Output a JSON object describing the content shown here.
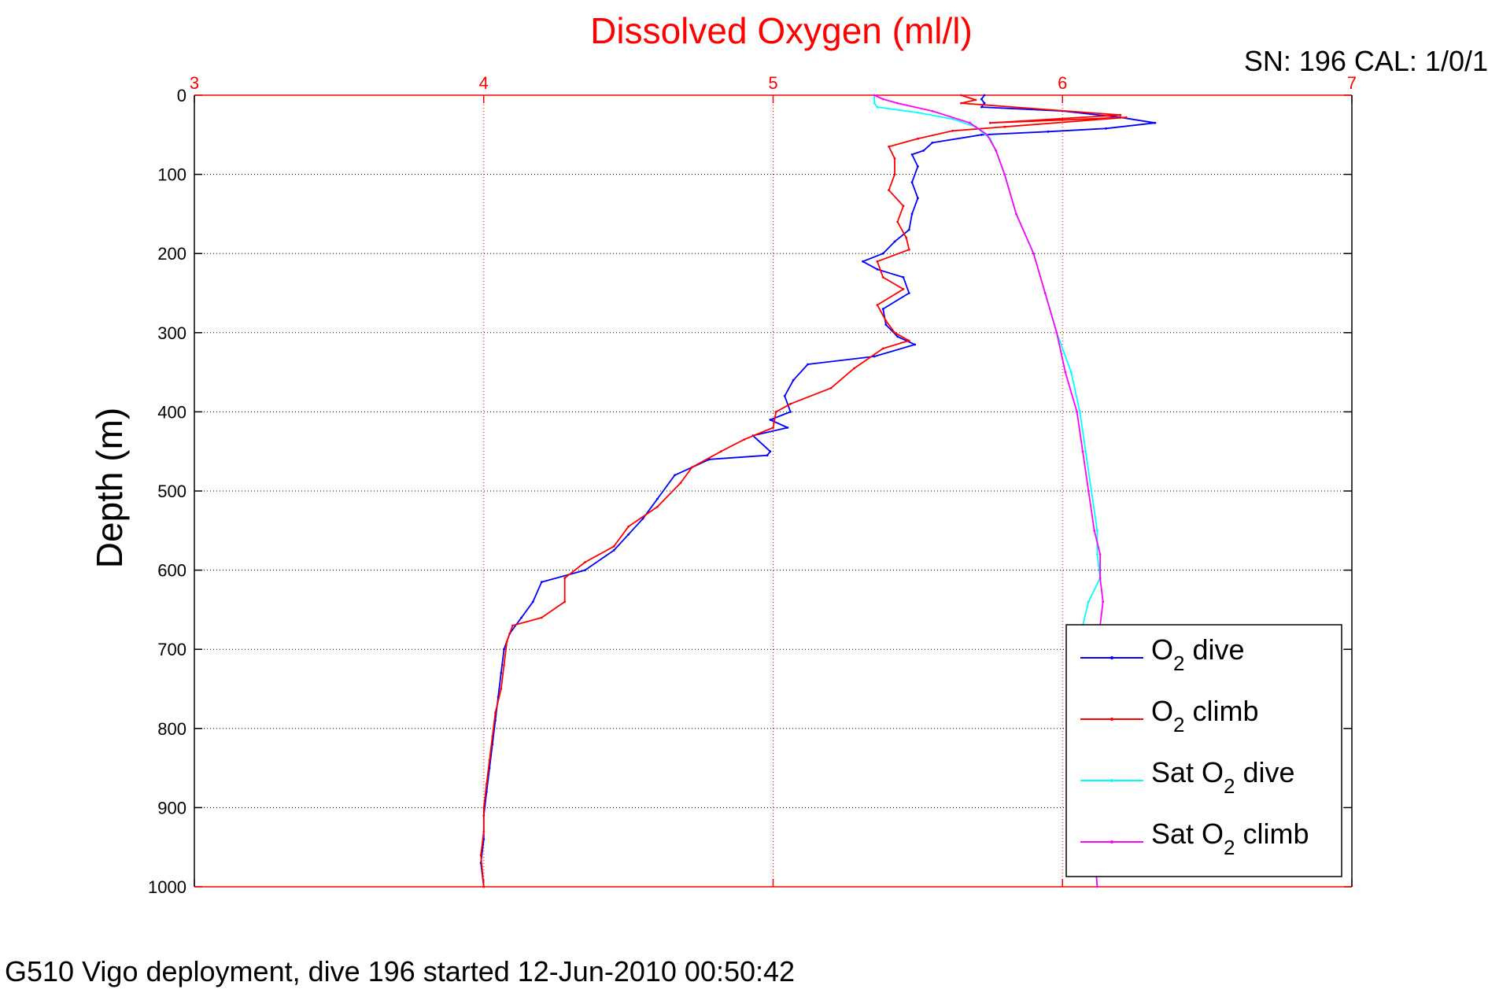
{
  "chart_data": {
    "type": "line",
    "title": "Dissolved Oxygen (ml/l)",
    "info_label": "SN: 196  CAL: 1/0/1",
    "ylabel": "Depth (m)",
    "footer": "G510 Vigo deployment, dive 196 started 12-Jun-2010 00:50:42",
    "xlim": [
      3,
      7
    ],
    "ylim": [
      0,
      1000
    ],
    "y_reversed": true,
    "x_axis_position": "top",
    "grid": true,
    "legend_placement": "bottom-right",
    "x_ticks": [
      "3",
      "4",
      "5",
      "6",
      "7"
    ],
    "y_ticks": [
      "0",
      "100",
      "200",
      "300",
      "400",
      "500",
      "600",
      "700",
      "800",
      "900",
      "1000"
    ],
    "colors": {
      "title": "#ff0000",
      "x_axis": "#ff0000",
      "y_axis": "#000000",
      "o2_dive": "#0000ff",
      "o2_climb": "#ff0000",
      "sat_dive": "#00ffff",
      "sat_climb": "#ff00ff"
    },
    "legend": [
      {
        "name": "O",
        "sub": "2",
        "suffix": " dive",
        "series": "o2_dive"
      },
      {
        "name": "O",
        "sub": "2",
        "suffix": " climb",
        "series": "o2_climb"
      },
      {
        "name": "Sat O",
        "sub": "2",
        "suffix": " dive",
        "series": "sat_dive"
      },
      {
        "name": "Sat O",
        "sub": "2",
        "suffix": " climb",
        "series": "sat_climb"
      }
    ],
    "series": [
      {
        "key": "o2_dive",
        "points": [
          [
            5.73,
            0
          ],
          [
            5.72,
            5
          ],
          [
            5.73,
            10
          ],
          [
            5.72,
            15
          ],
          [
            6.0,
            20
          ],
          [
            6.2,
            28
          ],
          [
            6.32,
            35
          ],
          [
            6.15,
            42
          ],
          [
            5.95,
            46
          ],
          [
            5.72,
            50
          ],
          [
            5.55,
            60
          ],
          [
            5.52,
            70
          ],
          [
            5.48,
            75
          ],
          [
            5.5,
            90
          ],
          [
            5.48,
            110
          ],
          [
            5.5,
            130
          ],
          [
            5.48,
            150
          ],
          [
            5.47,
            170
          ],
          [
            5.42,
            185
          ],
          [
            5.38,
            200
          ],
          [
            5.31,
            210
          ],
          [
            5.36,
            220
          ],
          [
            5.45,
            230
          ],
          [
            5.47,
            250
          ],
          [
            5.38,
            270
          ],
          [
            5.39,
            290
          ],
          [
            5.43,
            305
          ],
          [
            5.49,
            315
          ],
          [
            5.35,
            330
          ],
          [
            5.12,
            340
          ],
          [
            5.07,
            360
          ],
          [
            5.04,
            380
          ],
          [
            5.06,
            400
          ],
          [
            4.99,
            410
          ],
          [
            5.05,
            420
          ],
          [
            4.93,
            430
          ],
          [
            4.99,
            450
          ],
          [
            4.98,
            455
          ],
          [
            4.78,
            460
          ],
          [
            4.66,
            480
          ],
          [
            4.6,
            510
          ],
          [
            4.55,
            535
          ],
          [
            4.5,
            555
          ],
          [
            4.45,
            575
          ],
          [
            4.35,
            600
          ],
          [
            4.2,
            615
          ],
          [
            4.17,
            640
          ],
          [
            4.13,
            660
          ],
          [
            4.09,
            680
          ],
          [
            4.07,
            700
          ],
          [
            4.06,
            730
          ],
          [
            4.05,
            760
          ],
          [
            4.04,
            790
          ],
          [
            4.03,
            820
          ],
          [
            4.02,
            850
          ],
          [
            4.01,
            880
          ],
          [
            4.0,
            910
          ],
          [
            4.0,
            940
          ],
          [
            3.99,
            970
          ],
          [
            4.0,
            1000
          ]
        ]
      },
      {
        "key": "o2_climb",
        "points": [
          [
            5.65,
            0
          ],
          [
            5.7,
            6
          ],
          [
            5.65,
            10
          ],
          [
            6.2,
            25
          ],
          [
            5.75,
            35
          ],
          [
            6.22,
            28
          ],
          [
            5.8,
            40
          ],
          [
            5.62,
            45
          ],
          [
            5.5,
            55
          ],
          [
            5.4,
            65
          ],
          [
            5.42,
            80
          ],
          [
            5.42,
            100
          ],
          [
            5.4,
            120
          ],
          [
            5.45,
            140
          ],
          [
            5.43,
            160
          ],
          [
            5.46,
            180
          ],
          [
            5.47,
            195
          ],
          [
            5.36,
            210
          ],
          [
            5.38,
            230
          ],
          [
            5.45,
            245
          ],
          [
            5.36,
            265
          ],
          [
            5.39,
            285
          ],
          [
            5.42,
            300
          ],
          [
            5.47,
            310
          ],
          [
            5.38,
            320
          ],
          [
            5.28,
            345
          ],
          [
            5.2,
            370
          ],
          [
            5.06,
            390
          ],
          [
            5.01,
            400
          ],
          [
            5.0,
            420
          ],
          [
            4.9,
            435
          ],
          [
            4.82,
            450
          ],
          [
            4.72,
            470
          ],
          [
            4.68,
            490
          ],
          [
            4.6,
            520
          ],
          [
            4.5,
            545
          ],
          [
            4.45,
            570
          ],
          [
            4.35,
            590
          ],
          [
            4.28,
            610
          ],
          [
            4.28,
            640
          ],
          [
            4.2,
            660
          ],
          [
            4.1,
            670
          ],
          [
            4.08,
            690
          ],
          [
            4.07,
            720
          ],
          [
            4.06,
            750
          ],
          [
            4.04,
            780
          ],
          [
            4.03,
            810
          ],
          [
            4.02,
            840
          ],
          [
            4.01,
            870
          ],
          [
            4.0,
            900
          ],
          [
            4.0,
            930
          ],
          [
            3.99,
            960
          ],
          [
            4.0,
            1000
          ]
        ]
      },
      {
        "key": "sat_dive",
        "points": [
          [
            5.35,
            0
          ],
          [
            5.35,
            10
          ],
          [
            5.36,
            15
          ],
          [
            5.5,
            22
          ],
          [
            5.62,
            30
          ],
          [
            5.7,
            40
          ],
          [
            5.75,
            55
          ],
          [
            5.77,
            70
          ],
          [
            5.8,
            100
          ],
          [
            5.84,
            150
          ],
          [
            5.9,
            200
          ],
          [
            5.94,
            250
          ],
          [
            5.98,
            300
          ],
          [
            6.03,
            350
          ],
          [
            6.06,
            400
          ],
          [
            6.08,
            450
          ],
          [
            6.1,
            500
          ],
          [
            6.12,
            550
          ],
          [
            6.12,
            580
          ],
          [
            6.13,
            610
          ],
          [
            6.09,
            640
          ],
          [
            6.07,
            670
          ],
          [
            6.08,
            700
          ],
          [
            6.08,
            750
          ],
          [
            6.1,
            800
          ],
          [
            6.09,
            850
          ],
          [
            6.1,
            900
          ],
          [
            6.11,
            950
          ],
          [
            6.12,
            1000
          ]
        ]
      },
      {
        "key": "sat_climb",
        "points": [
          [
            5.35,
            0
          ],
          [
            5.38,
            5
          ],
          [
            5.43,
            10
          ],
          [
            5.55,
            20
          ],
          [
            5.68,
            35
          ],
          [
            5.74,
            50
          ],
          [
            5.77,
            70
          ],
          [
            5.8,
            100
          ],
          [
            5.84,
            150
          ],
          [
            5.9,
            200
          ],
          [
            5.94,
            250
          ],
          [
            5.98,
            300
          ],
          [
            6.01,
            350
          ],
          [
            6.05,
            400
          ],
          [
            6.07,
            450
          ],
          [
            6.09,
            500
          ],
          [
            6.11,
            550
          ],
          [
            6.13,
            580
          ],
          [
            6.13,
            610
          ],
          [
            6.14,
            640
          ],
          [
            6.13,
            670
          ],
          [
            6.12,
            700
          ],
          [
            6.11,
            750
          ],
          [
            6.1,
            800
          ],
          [
            6.1,
            850
          ],
          [
            6.11,
            900
          ],
          [
            6.11,
            950
          ],
          [
            6.12,
            1000
          ]
        ]
      }
    ]
  }
}
